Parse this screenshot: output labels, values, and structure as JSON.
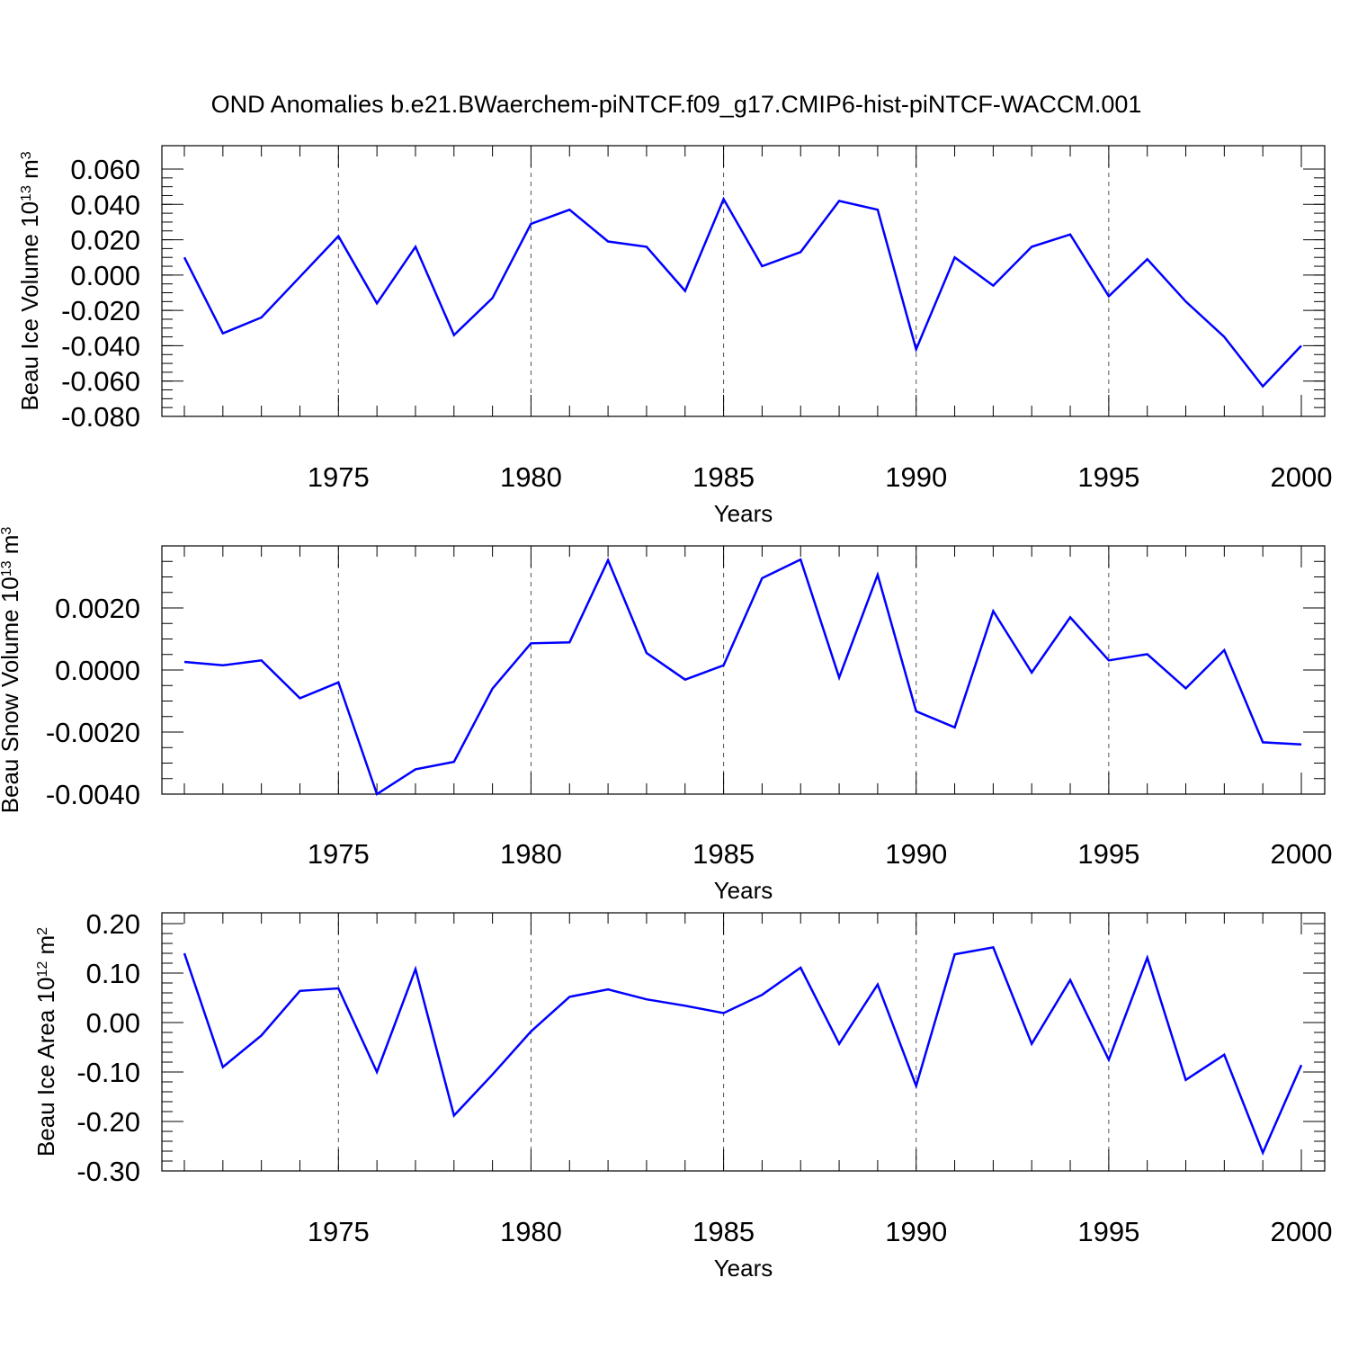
{
  "figure": {
    "title": "OND Anomalies b.e21.BWaerchem-piNTCF.f09_g17.CMIP6-hist-piNTCF-WACCM.001",
    "line_color": "#0000ff"
  },
  "chart_data": [
    {
      "type": "line",
      "xlabel": "Years",
      "ylabel": {
        "prefix": "Beau Ice Volume 10",
        "exponent": "13",
        "unit": " m",
        "unit_exponent": "3"
      },
      "xlim": [
        1971,
        2000
      ],
      "ylim": [
        -0.08,
        0.06
      ],
      "x_ticks": [
        1975,
        1980,
        1985,
        1990,
        1995,
        2000
      ],
      "y_ticks": [
        0.06,
        0.04,
        0.02,
        0.0,
        -0.02,
        -0.04,
        -0.06,
        -0.08
      ],
      "y_tick_labels": [
        "0.060",
        "0.040",
        "0.020",
        "0.000",
        "-0.020",
        "-0.040",
        "-0.060",
        "-0.080"
      ],
      "x_minor_step": 1,
      "y_minor_step": 0.005,
      "vertical_gridlines": "dashed at major x ticks",
      "series": [
        {
          "x": [
            1971,
            1972,
            1973,
            1974,
            1975,
            1976,
            1977,
            1978,
            1979,
            1980,
            1981,
            1982,
            1983,
            1984,
            1985,
            1986,
            1987,
            1988,
            1989,
            1990,
            1991,
            1992,
            1993,
            1994,
            1995,
            1996,
            1997,
            1998,
            1999,
            2000
          ],
          "values": [
            0.01,
            -0.033,
            -0.024,
            -0.001,
            0.022,
            -0.016,
            0.016,
            -0.034,
            -0.013,
            0.029,
            0.037,
            0.019,
            0.016,
            -0.009,
            0.043,
            0.005,
            0.013,
            0.042,
            0.037,
            -0.042,
            0.01,
            -0.006,
            0.016,
            0.023,
            -0.012,
            0.009,
            -0.015,
            -0.035,
            -0.063,
            -0.04
          ]
        }
      ]
    },
    {
      "type": "line",
      "xlabel": "Years",
      "ylabel": {
        "prefix": "Beau Snow Volume 10",
        "exponent": "13",
        "unit": " m",
        "unit_exponent": "3"
      },
      "xlim": [
        1971,
        2000
      ],
      "ylim": [
        -0.004,
        0.004
      ],
      "x_ticks": [
        1975,
        1980,
        1985,
        1990,
        1995,
        2000
      ],
      "y_ticks": [
        0.002,
        0.0,
        -0.002,
        -0.004
      ],
      "y_tick_labels": [
        "0.0020",
        "0.0000",
        "-0.0020",
        "-0.0040"
      ],
      "x_minor_step": 1,
      "y_minor_step": 0.0005,
      "vertical_gridlines": "dashed at major x ticks",
      "series": [
        {
          "x": [
            1971,
            1972,
            1973,
            1974,
            1975,
            1976,
            1977,
            1978,
            1979,
            1980,
            1981,
            1982,
            1983,
            1984,
            1985,
            1986,
            1987,
            1988,
            1989,
            1990,
            1991,
            1992,
            1993,
            1994,
            1995,
            1996,
            1997,
            1998,
            1999,
            2000
          ],
          "values": [
            0.00026,
            0.00015,
            0.00031,
            -0.00091,
            -0.0004,
            -0.004,
            -0.0032,
            -0.00296,
            -0.0006,
            0.00086,
            0.00089,
            0.00354,
            0.00055,
            -0.00031,
            0.00015,
            0.00296,
            0.00356,
            -0.00024,
            0.00307,
            -0.00133,
            -0.00185,
            0.0019,
            -8e-05,
            0.0017,
            0.00031,
            0.00051,
            -0.00059,
            0.00064,
            -0.00233,
            -0.0024
          ]
        }
      ]
    },
    {
      "type": "line",
      "xlabel": "Years",
      "ylabel": {
        "prefix": "Beau Ice Area 10",
        "exponent": "12",
        "unit": " m",
        "unit_exponent": "2"
      },
      "xlim": [
        1971,
        2000
      ],
      "ylim": [
        -0.3,
        0.2
      ],
      "x_ticks": [
        1975,
        1980,
        1985,
        1990,
        1995,
        2000
      ],
      "y_ticks": [
        0.2,
        0.1,
        0.0,
        -0.1,
        -0.2,
        -0.3
      ],
      "y_tick_labels": [
        "0.20",
        "0.10",
        "0.00",
        "-0.10",
        "-0.20",
        "-0.30"
      ],
      "x_minor_step": 1,
      "y_minor_step": 0.02,
      "vertical_gridlines": "dashed at major x ticks",
      "series": [
        {
          "x": [
            1971,
            1972,
            1973,
            1974,
            1975,
            1976,
            1977,
            1978,
            1979,
            1980,
            1981,
            1982,
            1983,
            1984,
            1985,
            1986,
            1987,
            1988,
            1989,
            1990,
            1991,
            1992,
            1993,
            1994,
            1995,
            1996,
            1997,
            1998,
            1999,
            2000
          ],
          "values": [
            0.14,
            -0.09,
            -0.026,
            0.064,
            0.069,
            -0.1,
            0.108,
            -0.188,
            -0.105,
            -0.018,
            0.052,
            0.067,
            0.047,
            0.034,
            0.019,
            0.056,
            0.111,
            -0.043,
            0.077,
            -0.128,
            0.138,
            0.152,
            -0.043,
            0.086,
            -0.075,
            0.131,
            -0.116,
            -0.065,
            -0.263,
            -0.086
          ]
        }
      ]
    }
  ]
}
